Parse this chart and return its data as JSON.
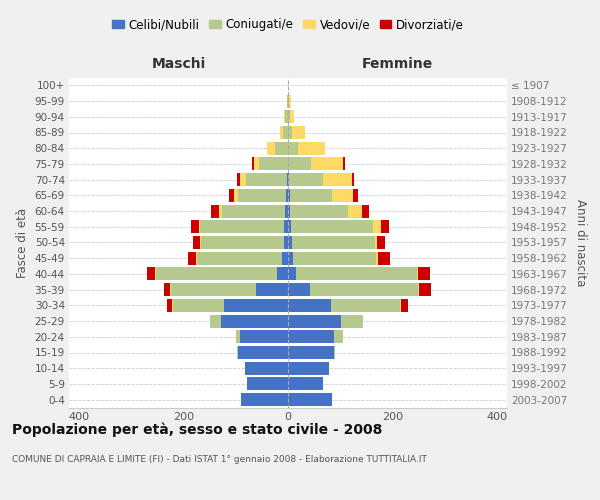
{
  "age_groups": [
    "0-4",
    "5-9",
    "10-14",
    "15-19",
    "20-24",
    "25-29",
    "30-34",
    "35-39",
    "40-44",
    "45-49",
    "50-54",
    "55-59",
    "60-64",
    "65-69",
    "70-74",
    "75-79",
    "80-84",
    "85-89",
    "90-94",
    "95-99",
    "100+"
  ],
  "birth_years": [
    "2003-2007",
    "1998-2002",
    "1993-1997",
    "1988-1992",
    "1983-1987",
    "1978-1982",
    "1973-1977",
    "1968-1972",
    "1963-1967",
    "1958-1962",
    "1953-1957",
    "1948-1952",
    "1943-1947",
    "1938-1942",
    "1933-1937",
    "1928-1932",
    "1923-1927",
    "1918-1922",
    "1913-1917",
    "1908-1912",
    "≤ 1907"
  ],
  "male": {
    "celibi": [
      90,
      78,
      82,
      95,
      92,
      128,
      122,
      62,
      22,
      12,
      8,
      7,
      5,
      4,
      2,
      0,
      0,
      0,
      0,
      0,
      0
    ],
    "coniugati": [
      0,
      0,
      0,
      2,
      8,
      22,
      98,
      162,
      232,
      162,
      158,
      162,
      122,
      92,
      78,
      55,
      25,
      10,
      5,
      2,
      0
    ],
    "vedovi": [
      0,
      0,
      0,
      0,
      0,
      0,
      2,
      2,
      2,
      2,
      2,
      2,
      5,
      8,
      12,
      10,
      15,
      5,
      2,
      0,
      0
    ],
    "divorziati": [
      0,
      0,
      0,
      0,
      0,
      0,
      10,
      12,
      15,
      15,
      15,
      15,
      15,
      10,
      5,
      5,
      0,
      0,
      0,
      0,
      0
    ]
  },
  "female": {
    "nubili": [
      85,
      68,
      78,
      88,
      88,
      102,
      82,
      42,
      15,
      10,
      8,
      5,
      4,
      3,
      2,
      0,
      0,
      0,
      0,
      0,
      0
    ],
    "coniugate": [
      0,
      0,
      0,
      2,
      18,
      42,
      132,
      208,
      232,
      158,
      158,
      158,
      112,
      82,
      65,
      45,
      20,
      8,
      3,
      2,
      0
    ],
    "vedove": [
      0,
      0,
      0,
      0,
      0,
      0,
      2,
      2,
      3,
      5,
      5,
      15,
      25,
      40,
      55,
      60,
      50,
      25,
      8,
      3,
      0
    ],
    "divorziate": [
      0,
      0,
      0,
      0,
      0,
      0,
      15,
      22,
      22,
      22,
      15,
      15,
      15,
      10,
      5,
      5,
      0,
      0,
      0,
      0,
      0
    ]
  },
  "colors": {
    "celibi_nubili": "#4472C4",
    "coniugati": "#B5C98E",
    "vedovi": "#FFD966",
    "divorziati": "#CC0000"
  },
  "title": "Popolazione per età, sesso e stato civile - 2008",
  "subtitle": "COMUNE DI CAPRAIA E LIMITE (FI) - Dati ISTAT 1° gennaio 2008 - Elaborazione TUTTITALIA.IT",
  "xlabel_left": "Maschi",
  "xlabel_right": "Femmine",
  "ylabel_left": "Fasce di età",
  "ylabel_right": "Anni di nascita",
  "xlim": 420,
  "bg_color": "#f0f0f0",
  "plot_bg": "#ffffff"
}
